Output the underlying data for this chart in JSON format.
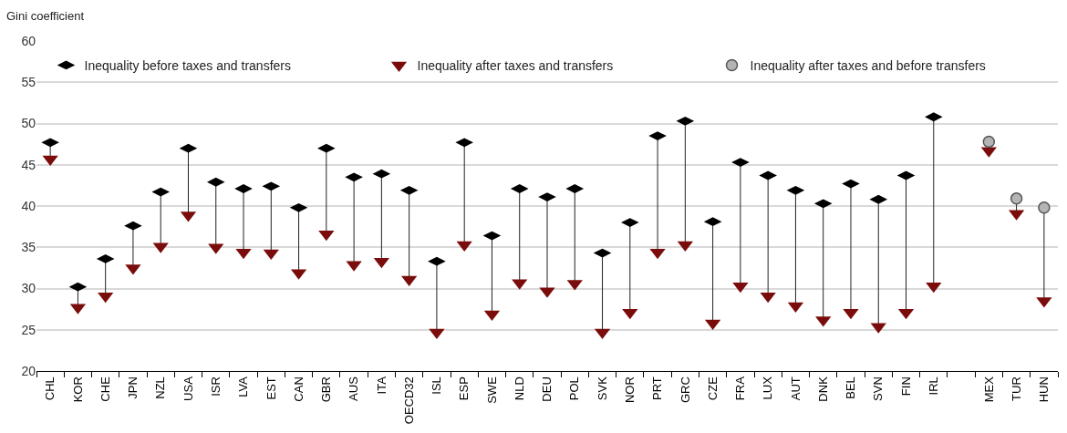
{
  "chart_data": {
    "type": "scatter",
    "ylabel": "Gini coefficient",
    "categories": [
      "CHL",
      "KOR",
      "CHE",
      "JPN",
      "NZL",
      "USA",
      "ISR",
      "LVA",
      "EST",
      "CAN",
      "GBR",
      "AUS",
      "ITA",
      "OECD32",
      "ISL",
      "ESP",
      "SWE",
      "NLD",
      "DEU",
      "POL",
      "SVK",
      "NOR",
      "PRT",
      "GRC",
      "CZE",
      "FRA",
      "LUX",
      "AUT",
      "DNK",
      "BEL",
      "SVN",
      "FIN",
      "IRL",
      null,
      "MEX",
      "TUR",
      "HUN"
    ],
    "series": [
      {
        "name": "Inequality before taxes and transfers",
        "color": "#000000",
        "marker": "diamond",
        "values": [
          47.7,
          30.2,
          33.6,
          37.6,
          41.7,
          47.0,
          42.9,
          42.1,
          42.4,
          39.8,
          47.0,
          43.5,
          43.9,
          41.9,
          33.3,
          47.7,
          36.4,
          42.1,
          41.1,
          42.1,
          34.3,
          38.0,
          48.5,
          50.3,
          38.1,
          45.3,
          43.7,
          41.9,
          40.3,
          42.7,
          40.8,
          43.7,
          50.8,
          null,
          null,
          null,
          null
        ]
      },
      {
        "name": "Inequality after taxes and transfers",
        "color": "#7a0c0c",
        "marker": "triangle",
        "values": [
          45.7,
          27.7,
          29.1,
          32.5,
          35.1,
          38.9,
          35.0,
          34.4,
          34.3,
          31.9,
          36.6,
          32.9,
          33.3,
          31.1,
          24.7,
          35.3,
          26.9,
          30.7,
          29.7,
          30.6,
          24.7,
          27.1,
          34.4,
          35.3,
          25.8,
          30.3,
          29.1,
          27.9,
          26.2,
          27.1,
          25.4,
          27.1,
          30.3,
          null,
          46.7,
          39.1,
          28.5
        ]
      },
      {
        "name": "Inequality after taxes and before transfers",
        "color": "#b4b4b4",
        "marker": "circle",
        "values": [
          null,
          null,
          null,
          null,
          null,
          null,
          null,
          null,
          null,
          null,
          null,
          null,
          null,
          null,
          null,
          null,
          null,
          null,
          null,
          null,
          null,
          null,
          null,
          null,
          null,
          null,
          null,
          null,
          null,
          null,
          null,
          null,
          null,
          null,
          47.8,
          40.9,
          39.8
        ]
      }
    ],
    "ylim": [
      20,
      60
    ],
    "yticks": [
      20,
      25,
      30,
      35,
      40,
      45,
      50,
      55,
      60
    ],
    "grid": "y",
    "legend": "top"
  }
}
